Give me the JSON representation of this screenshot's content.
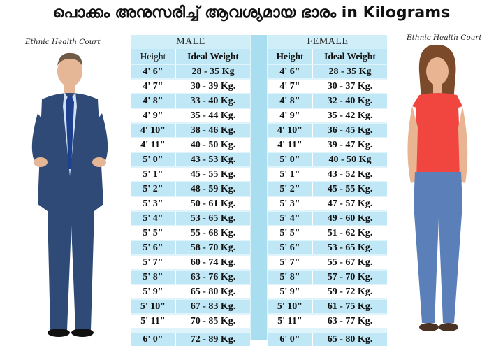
{
  "title": "പൊക്കം അനുസരിച്ച് ആവശ്യമായ ഭാരം in Kilograms",
  "credit_left": "Ethnic Health Court",
  "credit_right": "Ethnic Health Court",
  "male": {
    "label": "MALE",
    "col_height": "Height",
    "col_weight": "Ideal Weight",
    "rows": [
      {
        "h": "4' 6\"",
        "w": "28 - 35 Kg"
      },
      {
        "h": "4' 7\"",
        "w": "30 - 39 Kg."
      },
      {
        "h": "4' 8\"",
        "w": "33 - 40 Kg."
      },
      {
        "h": "4' 9\"",
        "w": "35 - 44 Kg."
      },
      {
        "h": "4' 10\"",
        "w": "38 - 46 Kg."
      },
      {
        "h": "4' 11\"",
        "w": "40 - 50 Kg."
      },
      {
        "h": "5' 0\"",
        "w": "43 - 53 Kg."
      },
      {
        "h": "5' 1\"",
        "w": "45 - 55 Kg."
      },
      {
        "h": "5' 2\"",
        "w": "48 - 59 Kg."
      },
      {
        "h": "5' 3\"",
        "w": "50 - 61 Kg."
      },
      {
        "h": "5' 4\"",
        "w": "53 - 65 Kg."
      },
      {
        "h": "5' 5\"",
        "w": "55 - 68 Kg."
      },
      {
        "h": "5' 6\"",
        "w": "58 - 70 Kg."
      },
      {
        "h": "5' 7\"",
        "w": "60 - 74 Kg."
      },
      {
        "h": "5' 8\"",
        "w": "63 - 76 Kg."
      },
      {
        "h": "5' 9\"",
        "w": "65 - 80 Kg."
      },
      {
        "h": "5' 10\"",
        "w": "67 - 83 Kg."
      },
      {
        "h": "5' 11\"",
        "w": "70 - 85 Kg."
      },
      {
        "h": "6' 0\"",
        "w": "72 - 89 Kg."
      }
    ]
  },
  "female": {
    "label": "FEMALE",
    "col_height": "Height",
    "col_weight": "Ideal Weight",
    "rows": [
      {
        "h": "4' 6\"",
        "w": "28 - 35 Kg"
      },
      {
        "h": "4' 7\"",
        "w": "30 - 37 Kg."
      },
      {
        "h": "4' 8\"",
        "w": "32 - 40 Kg."
      },
      {
        "h": "4' 9\"",
        "w": "35 - 42 Kg."
      },
      {
        "h": "4' 10\"",
        "w": "36 - 45 Kg."
      },
      {
        "h": "4' 11\"",
        "w": "39 - 47 Kg."
      },
      {
        "h": "5' 0\"",
        "w": "40 - 50 Kg"
      },
      {
        "h": "5' 1\"",
        "w": "43 - 52 Kg."
      },
      {
        "h": "5' 2\"",
        "w": "45 - 55 Kg."
      },
      {
        "h": "5' 3\"",
        "w": "47 - 57 Kg."
      },
      {
        "h": "5' 4\"",
        "w": "49 - 60 Kg."
      },
      {
        "h": "5' 5\"",
        "w": "51 - 62 Kg."
      },
      {
        "h": "5' 6\"",
        "w": "53 - 65 Kg."
      },
      {
        "h": "5' 7\"",
        "w": "55 - 67 Kg."
      },
      {
        "h": "5' 8\"",
        "w": "57 - 70 Kg."
      },
      {
        "h": "5' 9\"",
        "w": "59 - 72 Kg."
      },
      {
        "h": "5' 10\"",
        "w": "61 - 75 Kg."
      },
      {
        "h": "5' 11\"",
        "w": "63 - 77 Kg."
      },
      {
        "h": "6' 0\"",
        "w": "65 - 80 Kg."
      }
    ]
  },
  "colors": {
    "cell": "#bfe7f5",
    "divider": "#a9def1",
    "man_suit": "#2f4a76",
    "man_tie": "#1f3f8f",
    "woman_top": "#f0463f",
    "woman_jeans": "#5b7fb8"
  }
}
